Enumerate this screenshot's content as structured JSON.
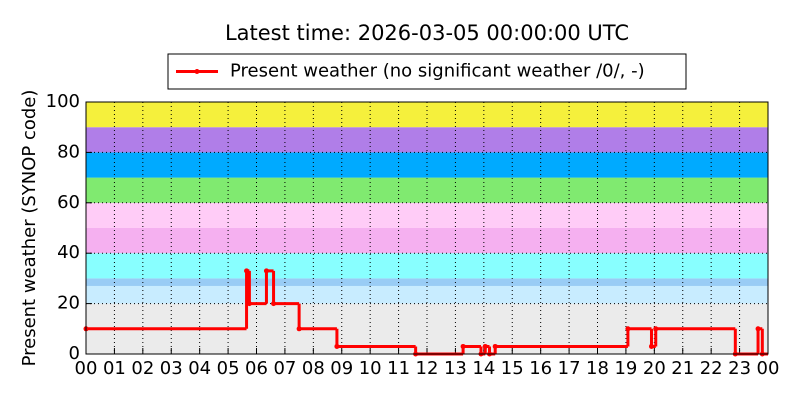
{
  "chart_data": {
    "type": "step",
    "title": "Latest time: 2026-03-05 00:00:00 UTC",
    "ylabel": "Present weather (SYNOP code)",
    "series": [
      {
        "name": "Present weather (no significant weather /0/, -)",
        "color": "#ff0000",
        "x": [
          0,
          5.65,
          5.75,
          6.35,
          6.6,
          7.5,
          8.83,
          11.6,
          13.27,
          13.9,
          14.05,
          14.2,
          14.4,
          19.07,
          19.9,
          20.05,
          22.85,
          23.65,
          23.8
        ],
        "values": [
          10,
          33,
          20,
          33,
          20,
          10,
          3,
          0,
          3,
          0,
          3,
          0,
          3,
          10,
          3,
          10,
          0,
          10,
          0
        ]
      }
    ],
    "bands": [
      {
        "from": 0,
        "to": 20,
        "color": "#ebebeb"
      },
      {
        "from": 20,
        "to": 27,
        "color": "#c8ecff"
      },
      {
        "from": 27,
        "to": 30,
        "color": "#99ccf5"
      },
      {
        "from": 30,
        "to": 40,
        "color": "#88ffff"
      },
      {
        "from": 40,
        "to": 50,
        "color": "#f5b0f0"
      },
      {
        "from": 50,
        "to": 60,
        "color": "#ffccf7"
      },
      {
        "from": 60,
        "to": 70,
        "color": "#80ea70"
      },
      {
        "from": 70,
        "to": 80,
        "color": "#00aaff"
      },
      {
        "from": 80,
        "to": 90,
        "color": "#b07ee8"
      },
      {
        "from": 90,
        "to": 100,
        "color": "#f5f03c"
      }
    ],
    "xlim": [
      0,
      24
    ],
    "ylim": [
      0,
      100
    ],
    "yticks": [
      0,
      20,
      40,
      60,
      80,
      100
    ],
    "xticks": [
      {
        "value": 0,
        "label": "00"
      },
      {
        "value": 1,
        "label": "01"
      },
      {
        "value": 2,
        "label": "02"
      },
      {
        "value": 3,
        "label": "03"
      },
      {
        "value": 4,
        "label": "04"
      },
      {
        "value": 5,
        "label": "05"
      },
      {
        "value": 6,
        "label": "06"
      },
      {
        "value": 7,
        "label": "07"
      },
      {
        "value": 8,
        "label": "08"
      },
      {
        "value": 9,
        "label": "09"
      },
      {
        "value": 10,
        "label": "10"
      },
      {
        "value": 11,
        "label": "11"
      },
      {
        "value": 12,
        "label": "12"
      },
      {
        "value": 13,
        "label": "13"
      },
      {
        "value": 14,
        "label": "14"
      },
      {
        "value": 15,
        "label": "15"
      },
      {
        "value": 16,
        "label": "16"
      },
      {
        "value": 17,
        "label": "17"
      },
      {
        "value": 18,
        "label": "18"
      },
      {
        "value": 19,
        "label": "19"
      },
      {
        "value": 20,
        "label": "20"
      },
      {
        "value": 21,
        "label": "21"
      },
      {
        "value": 22,
        "label": "22"
      },
      {
        "value": 23,
        "label": "23"
      },
      {
        "value": 24,
        "label": "00"
      }
    ],
    "grid": true,
    "legend": "top"
  }
}
